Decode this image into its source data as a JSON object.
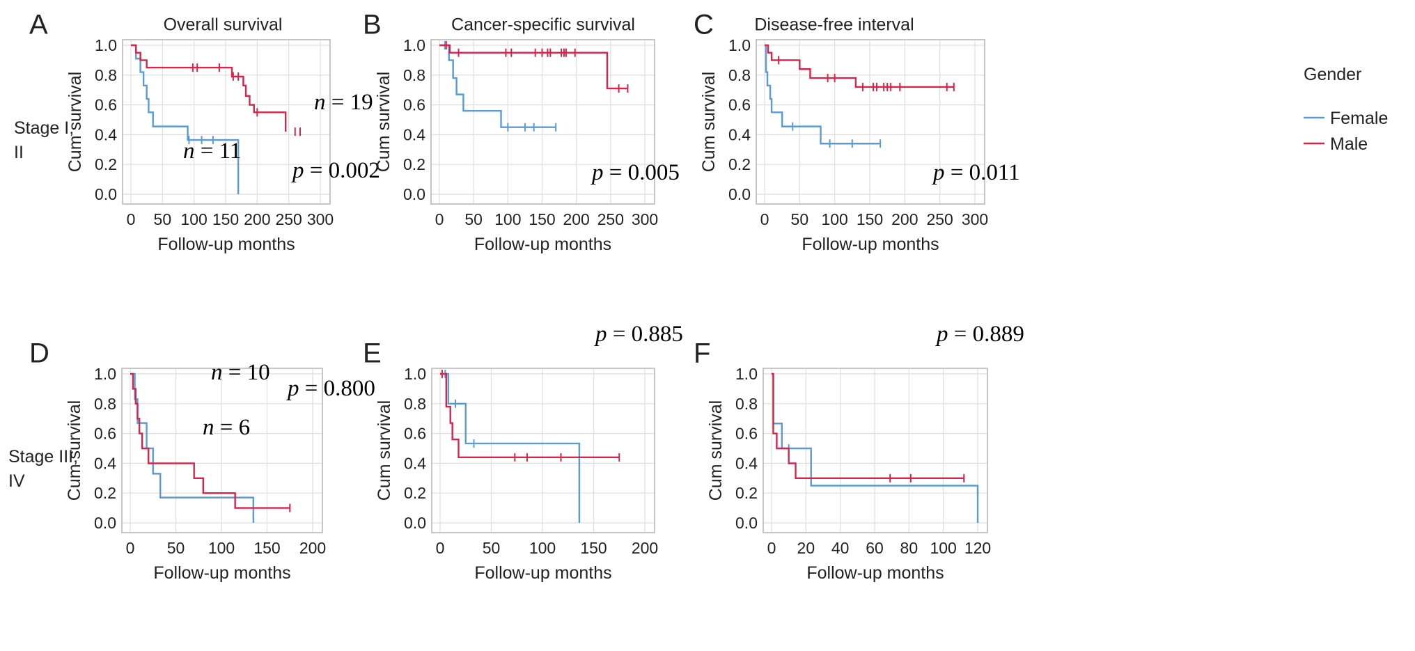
{
  "figure": {
    "row_labels": [
      [
        "Stage I,",
        "II"
      ],
      [
        "Stage III,",
        "IV"
      ]
    ],
    "legend": {
      "title": "Gender",
      "items": [
        "Female",
        "Male"
      ]
    }
  },
  "colors": {
    "female": "#5b9bd5",
    "male": "#d6244a",
    "grid": "#dedede",
    "frame": "#b3b3b3"
  },
  "chart_data": [
    {
      "panel": "A",
      "type": "line",
      "subtype": "kaplan-meier step",
      "title": "Overall survival",
      "xlabel": "Follow-up months",
      "ylabel": "Cum survival",
      "xlim": [
        0,
        300
      ],
      "ylim": [
        0,
        1
      ],
      "xticks": [
        0,
        50,
        100,
        150,
        200,
        250,
        300
      ],
      "yticks": [
        0.0,
        0.2,
        0.4,
        0.6,
        0.8,
        1.0
      ],
      "p_value": "0.002",
      "n_labels": [
        {
          "series": "Female",
          "text": "11"
        },
        {
          "series": "Male",
          "text": "19"
        }
      ],
      "series": [
        {
          "name": "Female",
          "steps": [
            [
              0,
              1.0
            ],
            [
              8,
              0.91
            ],
            [
              15,
              0.82
            ],
            [
              20,
              0.73
            ],
            [
              25,
              0.64
            ],
            [
              28,
              0.55
            ],
            [
              35,
              0.455
            ],
            [
              90,
              0.364
            ],
            [
              170,
              0.0
            ]
          ],
          "censored": [
            [
              92,
              0.364
            ],
            [
              112,
              0.364
            ],
            [
              130,
              0.364
            ]
          ]
        },
        {
          "name": "Male",
          "steps": [
            [
              0,
              1.0
            ],
            [
              8,
              0.95
            ],
            [
              15,
              0.9
            ],
            [
              25,
              0.85
            ],
            [
              160,
              0.79
            ],
            [
              178,
              0.73
            ],
            [
              182,
              0.66
            ],
            [
              188,
              0.6
            ],
            [
              195,
              0.55
            ],
            [
              245,
              0.42
            ]
          ],
          "censored": [
            [
              98,
              0.85
            ],
            [
              105,
              0.85
            ],
            [
              140,
              0.85
            ],
            [
              162,
              0.79
            ],
            [
              170,
              0.79
            ],
            [
              200,
              0.55
            ],
            [
              260,
              0.42
            ],
            [
              268,
              0.42
            ]
          ]
        }
      ]
    },
    {
      "panel": "B",
      "type": "line",
      "subtype": "kaplan-meier step",
      "title": "Cancer-specific survival",
      "xlabel": "Follow-up months",
      "ylabel": "Cum survival",
      "xlim": [
        0,
        300
      ],
      "ylim": [
        0,
        1
      ],
      "xticks": [
        0,
        50,
        100,
        150,
        200,
        250,
        300
      ],
      "yticks": [
        0.0,
        0.2,
        0.4,
        0.6,
        0.8,
        1.0
      ],
      "p_value": "0.005",
      "n_labels": [],
      "series": [
        {
          "name": "Female",
          "steps": [
            [
              0,
              1.0
            ],
            [
              14,
              0.9
            ],
            [
              20,
              0.78
            ],
            [
              25,
              0.67
            ],
            [
              35,
              0.56
            ],
            [
              90,
              0.45
            ]
          ],
          "end": [
            170,
            0.45
          ],
          "censored": [
            [
              8,
              1.0
            ],
            [
              100,
              0.45
            ],
            [
              125,
              0.45
            ],
            [
              138,
              0.45
            ],
            [
              170,
              0.45
            ]
          ]
        },
        {
          "name": "Male",
          "steps": [
            [
              0,
              1.0
            ],
            [
              15,
              0.95
            ],
            [
              245,
              0.71
            ]
          ],
          "end": [
            275,
            0.71
          ],
          "censored": [
            [
              10,
              1.0
            ],
            [
              28,
              0.95
            ],
            [
              97,
              0.95
            ],
            [
              105,
              0.95
            ],
            [
              140,
              0.95
            ],
            [
              150,
              0.95
            ],
            [
              158,
              0.95
            ],
            [
              162,
              0.95
            ],
            [
              178,
              0.95
            ],
            [
              182,
              0.95
            ],
            [
              185,
              0.95
            ],
            [
              198,
              0.95
            ],
            [
              262,
              0.71
            ],
            [
              275,
              0.71
            ]
          ]
        }
      ]
    },
    {
      "panel": "C",
      "type": "line",
      "subtype": "kaplan-meier step",
      "title": "Disease-free interval",
      "xlabel": "Follow-up months",
      "ylabel": "Cum survival",
      "xlim": [
        0,
        300
      ],
      "ylim": [
        0,
        1
      ],
      "xticks": [
        0,
        50,
        100,
        150,
        200,
        250,
        300
      ],
      "yticks": [
        0.0,
        0.2,
        0.4,
        0.6,
        0.8,
        1.0
      ],
      "p_value": "0.011",
      "n_labels": [],
      "series": [
        {
          "name": "Female",
          "steps": [
            [
              0,
              1.0
            ],
            [
              2,
              0.82
            ],
            [
              4,
              0.73
            ],
            [
              8,
              0.64
            ],
            [
              10,
              0.55
            ],
            [
              25,
              0.455
            ],
            [
              80,
              0.34
            ]
          ],
          "end": [
            165,
            0.34
          ],
          "censored": [
            [
              40,
              0.455
            ],
            [
              93,
              0.34
            ],
            [
              125,
              0.34
            ],
            [
              165,
              0.34
            ]
          ]
        },
        {
          "name": "Male",
          "steps": [
            [
              0,
              1.0
            ],
            [
              5,
              0.95
            ],
            [
              10,
              0.9
            ],
            [
              50,
              0.84
            ],
            [
              65,
              0.78
            ],
            [
              130,
              0.72
            ]
          ],
          "end": [
            270,
            0.72
          ],
          "censored": [
            [
              20,
              0.9
            ],
            [
              90,
              0.78
            ],
            [
              100,
              0.78
            ],
            [
              140,
              0.72
            ],
            [
              155,
              0.72
            ],
            [
              160,
              0.72
            ],
            [
              170,
              0.72
            ],
            [
              175,
              0.72
            ],
            [
              180,
              0.72
            ],
            [
              193,
              0.72
            ],
            [
              260,
              0.72
            ],
            [
              270,
              0.72
            ]
          ]
        }
      ]
    },
    {
      "panel": "D",
      "type": "line",
      "subtype": "kaplan-meier step",
      "title": "",
      "xlabel": "Follow-up months",
      "ylabel": "Cum survival",
      "xlim": [
        0,
        200
      ],
      "ylim": [
        0,
        1
      ],
      "xticks": [
        0,
        50,
        100,
        150,
        200
      ],
      "yticks": [
        0.0,
        0.2,
        0.4,
        0.6,
        0.8,
        1.0
      ],
      "p_value": "0.800",
      "n_labels": [
        {
          "series": "Male",
          "text": "10"
        },
        {
          "series": "Female",
          "text": "6"
        }
      ],
      "series": [
        {
          "name": "Female",
          "steps": [
            [
              0,
              1.0
            ],
            [
              5,
              0.83
            ],
            [
              8,
              0.67
            ],
            [
              18,
              0.5
            ],
            [
              25,
              0.33
            ],
            [
              33,
              0.17
            ],
            [
              135,
              0.0
            ]
          ],
          "censored": []
        },
        {
          "name": "Male",
          "steps": [
            [
              0,
              1.0
            ],
            [
              3,
              0.9
            ],
            [
              6,
              0.8
            ],
            [
              8,
              0.7
            ],
            [
              10,
              0.6
            ],
            [
              13,
              0.5
            ],
            [
              20,
              0.4
            ],
            [
              70,
              0.3
            ],
            [
              80,
              0.2
            ],
            [
              115,
              0.1
            ]
          ],
          "end": [
            175,
            0.1
          ],
          "censored": [
            [
              175,
              0.1
            ]
          ]
        }
      ]
    },
    {
      "panel": "E",
      "type": "line",
      "subtype": "kaplan-meier step",
      "title": "",
      "xlabel": "Follow-up months",
      "ylabel": "Cum survival",
      "xlim": [
        0,
        200
      ],
      "ylim": [
        0,
        1
      ],
      "xticks": [
        0,
        50,
        100,
        150,
        200
      ],
      "yticks": [
        0.0,
        0.2,
        0.4,
        0.6,
        0.8,
        1.0
      ],
      "p_value": "0.885",
      "n_labels": [],
      "series": [
        {
          "name": "Female",
          "steps": [
            [
              0,
              1.0
            ],
            [
              8,
              0.8
            ],
            [
              25,
              0.533
            ],
            [
              136,
              0.0
            ]
          ],
          "censored": [
            [
              5,
              1.0
            ],
            [
              15,
              0.8
            ],
            [
              33,
              0.533
            ]
          ]
        },
        {
          "name": "Male",
          "steps": [
            [
              0,
              1.0
            ],
            [
              6,
              0.78
            ],
            [
              10,
              0.67
            ],
            [
              12,
              0.56
            ],
            [
              18,
              0.44
            ]
          ],
          "end": [
            175,
            0.44
          ],
          "censored": [
            [
              2,
              1.0
            ],
            [
              73,
              0.44
            ],
            [
              85,
              0.44
            ],
            [
              118,
              0.44
            ],
            [
              175,
              0.44
            ]
          ]
        }
      ]
    },
    {
      "panel": "F",
      "type": "line",
      "subtype": "kaplan-meier step",
      "title": "",
      "xlabel": "Follow-up months",
      "ylabel": "Cum survival",
      "xlim": [
        0,
        120
      ],
      "ylim": [
        0,
        1
      ],
      "xticks": [
        0,
        20,
        40,
        60,
        80,
        100,
        120
      ],
      "yticks": [
        0.0,
        0.2,
        0.4,
        0.6,
        0.8,
        1.0
      ],
      "p_value": "0.889",
      "n_labels": [],
      "series": [
        {
          "name": "Female",
          "steps": [
            [
              0,
              1.0
            ],
            [
              1,
              0.667
            ],
            [
              6,
              0.5
            ],
            [
              23,
              0.25
            ],
            [
              120,
              0.0
            ]
          ],
          "censored": [
            [
              10,
              0.5
            ]
          ]
        },
        {
          "name": "Male",
          "steps": [
            [
              0,
              1.0
            ],
            [
              1,
              0.6
            ],
            [
              3,
              0.5
            ],
            [
              10,
              0.4
            ],
            [
              14,
              0.3
            ]
          ],
          "end": [
            112,
            0.3
          ],
          "censored": [
            [
              69,
              0.3
            ],
            [
              81,
              0.3
            ],
            [
              112,
              0.3
            ]
          ]
        }
      ]
    }
  ]
}
